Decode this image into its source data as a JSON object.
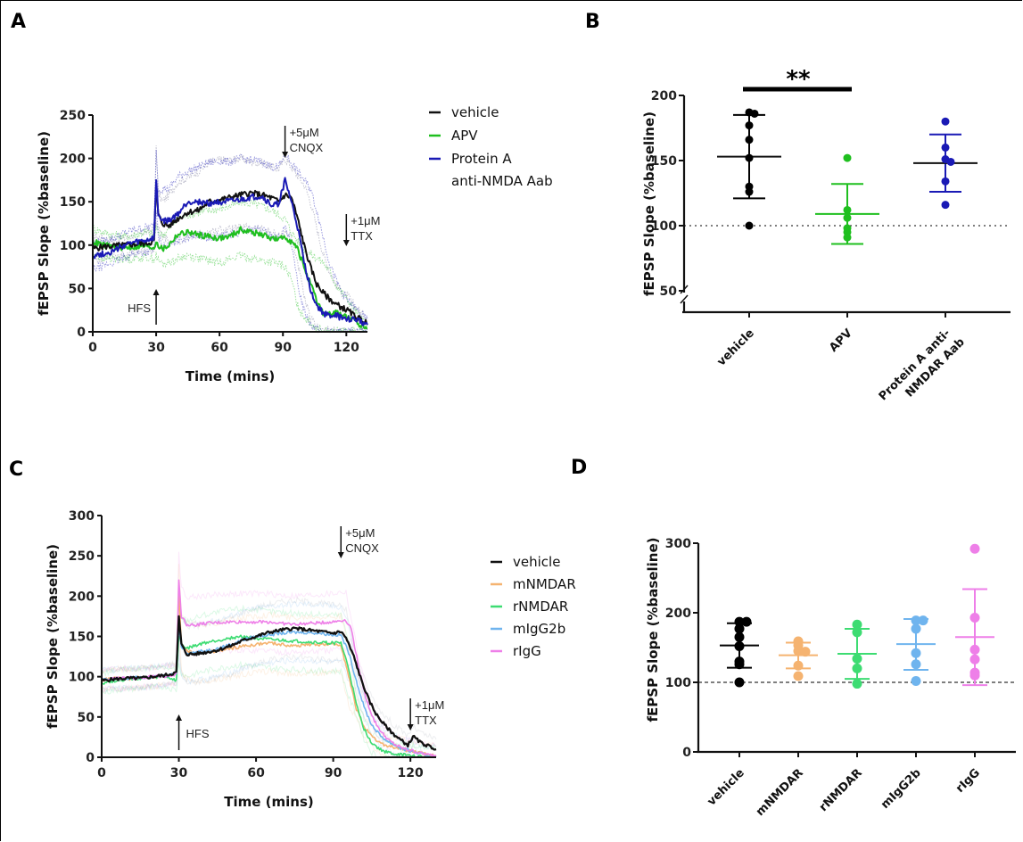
{
  "panels": {
    "A": {
      "letter": "A"
    },
    "B": {
      "letter": "B"
    },
    "C": {
      "letter": "C"
    },
    "D": {
      "letter": "D"
    }
  },
  "chart_data": [
    {
      "id": "A",
      "type": "line",
      "title": "",
      "xlabel": "Time (mins)",
      "ylabel": "fEPSP Slope (%baseline)",
      "xlim": [
        0,
        130
      ],
      "ylim": [
        0,
        250
      ],
      "xticks": [
        0,
        30,
        60,
        90,
        120
      ],
      "yticks": [
        0,
        50,
        100,
        150,
        200,
        250
      ],
      "grid": false,
      "legend": "right",
      "annotations": [
        {
          "text": "HFS",
          "x": 30,
          "direction": "up"
        },
        {
          "text_lines": [
            "+5μM",
            "CNQX"
          ],
          "x": 91,
          "direction": "down"
        },
        {
          "text_lines": [
            "+1μM",
            "TTX"
          ],
          "x": 120,
          "direction": "down"
        }
      ],
      "series": [
        {
          "name": "vehicle",
          "color": "#111111",
          "x": [
            0,
            5,
            10,
            15,
            20,
            25,
            29,
            30,
            31,
            33,
            36,
            40,
            45,
            50,
            55,
            60,
            65,
            70,
            75,
            80,
            85,
            88,
            91,
            94,
            97,
            100,
            103,
            106,
            109,
            112,
            115,
            118,
            121,
            124,
            127,
            130
          ],
          "y": [
            96,
            98,
            99,
            100,
            101,
            102,
            104,
            170,
            135,
            125,
            122,
            130,
            138,
            140,
            150,
            152,
            155,
            158,
            160,
            158,
            154,
            150,
            158,
            155,
            130,
            100,
            75,
            55,
            45,
            38,
            32,
            28,
            24,
            18,
            14,
            10
          ],
          "sd_upper": [
            110,
            108,
            105,
            108,
            112,
            115,
            118,
            215,
            160,
            150,
            158,
            172,
            178,
            185,
            195,
            198,
            198,
            200,
            196,
            195,
            190,
            188,
            200,
            190,
            180,
            170,
            150,
            120,
            90,
            70,
            55,
            45,
            40,
            30,
            22,
            16
          ],
          "sd_lower": [
            82,
            85,
            88,
            90,
            92,
            92,
            94,
            130,
            118,
            110,
            105,
            105,
            108,
            112,
            115,
            118,
            118,
            120,
            120,
            118,
            115,
            110,
            116,
            110,
            80,
            40,
            15,
            5,
            2,
            1,
            0,
            0,
            0,
            0,
            0,
            0
          ]
        },
        {
          "name": "APV",
          "color": "#1fbf1f",
          "x": [
            0,
            5,
            10,
            15,
            20,
            25,
            29,
            30,
            31,
            33,
            36,
            40,
            45,
            50,
            55,
            60,
            65,
            70,
            75,
            80,
            85,
            88,
            91,
            94,
            97,
            100,
            103,
            106,
            109,
            112,
            115,
            118,
            121,
            124,
            127,
            130
          ],
          "y": [
            104,
            100,
            98,
            97,
            98,
            99,
            97,
            105,
            100,
            95,
            100,
            112,
            115,
            112,
            110,
            108,
            110,
            118,
            115,
            112,
            108,
            106,
            110,
            104,
            95,
            75,
            55,
            35,
            22,
            20,
            22,
            20,
            16,
            12,
            8,
            4
          ],
          "sd_upper": [
            120,
            115,
            112,
            110,
            112,
            115,
            112,
            120,
            115,
            112,
            118,
            130,
            135,
            138,
            140,
            142,
            145,
            150,
            148,
            145,
            140,
            135,
            130,
            115,
            105,
            95,
            90,
            85,
            80,
            70,
            55,
            45,
            35,
            25,
            15,
            8
          ],
          "sd_lower": [
            88,
            85,
            84,
            84,
            85,
            86,
            84,
            88,
            82,
            78,
            80,
            84,
            88,
            85,
            82,
            80,
            84,
            88,
            85,
            82,
            80,
            78,
            75,
            60,
            30,
            18,
            10,
            5,
            2,
            0,
            0,
            0,
            0,
            0,
            0,
            0
          ]
        },
        {
          "name": "Protein A anti-NMDA Aab",
          "color": "#1a1ab5",
          "x": [
            0,
            5,
            10,
            15,
            20,
            25,
            29,
            30,
            31,
            33,
            36,
            40,
            45,
            50,
            55,
            60,
            65,
            70,
            75,
            80,
            85,
            88,
            91,
            94,
            97,
            100,
            103,
            106,
            109,
            112,
            115,
            118,
            121,
            124,
            127,
            130
          ],
          "y": [
            88,
            90,
            93,
            100,
            103,
            105,
            108,
            175,
            135,
            128,
            128,
            135,
            150,
            150,
            148,
            150,
            150,
            152,
            155,
            156,
            145,
            148,
            175,
            150,
            120,
            80,
            50,
            30,
            22,
            18,
            20,
            15,
            15,
            14,
            12,
            8
          ],
          "sd_upper": [
            102,
            105,
            108,
            114,
            118,
            120,
            122,
            210,
            165,
            165,
            165,
            178,
            185,
            190,
            195,
            197,
            196,
            200,
            198,
            196,
            190,
            190,
            205,
            195,
            185,
            175,
            165,
            140,
            110,
            80,
            60,
            45,
            35,
            28,
            20,
            14
          ],
          "sd_lower": [
            72,
            76,
            80,
            86,
            90,
            92,
            94,
            140,
            110,
            100,
            98,
            105,
            110,
            112,
            108,
            110,
            112,
            115,
            118,
            118,
            110,
            108,
            120,
            100,
            55,
            25,
            10,
            3,
            0,
            0,
            0,
            0,
            0,
            0,
            0,
            0
          ]
        }
      ]
    },
    {
      "id": "B",
      "type": "scatter",
      "title": "",
      "xlabel": "",
      "ylabel": "fEPSP Slope (%baseline)",
      "ylim": [
        50,
        200
      ],
      "yticks": [
        50,
        100,
        150,
        200
      ],
      "axis_break": true,
      "reference_line": 100,
      "grid": false,
      "significance": {
        "from": "vehicle",
        "to": "APV",
        "label": "**"
      },
      "categories": [
        "vehicle",
        "APV",
        "Protein A anti-NMDAR Aab"
      ],
      "category_label_lines": [
        [
          "vehicle"
        ],
        [
          "APV"
        ],
        [
          "Protein A anti-",
          "NMDAR Aab"
        ]
      ],
      "series": [
        {
          "name": "vehicle",
          "color": "#000000",
          "values": [
            187,
            186,
            177,
            166,
            152,
            130,
            126,
            100
          ],
          "mean": 153,
          "sd_upper": 185,
          "sd_lower": 121
        },
        {
          "name": "APV",
          "color": "#1fbf1f",
          "values": [
            152,
            112,
            106,
            98,
            95,
            91
          ],
          "mean": 109,
          "sd_upper": 132,
          "sd_lower": 86
        },
        {
          "name": "Protein A anti-NMDAR Aab",
          "color": "#1a1ab5",
          "values": [
            180,
            160,
            151,
            149,
            134,
            116
          ],
          "mean": 148,
          "sd_upper": 170,
          "sd_lower": 126
        }
      ]
    },
    {
      "id": "C",
      "type": "line",
      "title": "",
      "xlabel": "Time (mins)",
      "ylabel": "fEPSP Slope (%baseline)",
      "xlim": [
        0,
        130
      ],
      "ylim": [
        0,
        300
      ],
      "xticks": [
        0,
        30,
        60,
        90,
        120
      ],
      "yticks": [
        0,
        50,
        100,
        150,
        200,
        250,
        300
      ],
      "grid": false,
      "legend": "right",
      "annotations": [
        {
          "text": "HFS",
          "x": 30,
          "direction": "up"
        },
        {
          "text_lines": [
            "+5μM",
            "CNQX"
          ],
          "x": 93,
          "direction": "down"
        },
        {
          "text_lines": [
            "+1μM",
            "TTX"
          ],
          "x": 120,
          "direction": "down"
        }
      ],
      "series": [
        {
          "name": "vehicle",
          "color": "#111111",
          "x": [
            0,
            5,
            10,
            15,
            20,
            25,
            29,
            30,
            31,
            33,
            36,
            40,
            45,
            50,
            55,
            60,
            65,
            70,
            75,
            80,
            85,
            90,
            93,
            95,
            98,
            101,
            104,
            107,
            110,
            113,
            116,
            119,
            120,
            121,
            124,
            127,
            130
          ],
          "y": [
            95,
            97,
            98,
            98,
            100,
            102,
            105,
            175,
            140,
            128,
            128,
            130,
            133,
            138,
            145,
            150,
            155,
            158,
            160,
            158,
            156,
            154,
            156,
            148,
            125,
            95,
            70,
            52,
            40,
            30,
            22,
            15,
            20,
            26,
            18,
            14,
            10
          ]
        },
        {
          "name": "mNMDAR",
          "color": "#f5b370",
          "x": [
            0,
            5,
            10,
            15,
            20,
            25,
            29,
            30,
            31,
            33,
            36,
            40,
            45,
            50,
            55,
            60,
            65,
            70,
            75,
            80,
            85,
            90,
            93,
            96,
            99,
            102,
            105,
            108,
            111,
            114,
            117,
            120,
            124,
            127,
            130
          ],
          "y": [
            96,
            98,
            97,
            99,
            100,
            101,
            104,
            205,
            140,
            132,
            130,
            130,
            132,
            135,
            138,
            140,
            142,
            140,
            138,
            140,
            140,
            140,
            140,
            100,
            60,
            38,
            25,
            18,
            14,
            12,
            10,
            8,
            5,
            3,
            2
          ]
        },
        {
          "name": "rNMDAR",
          "color": "#3ddc72",
          "x": [
            0,
            5,
            10,
            15,
            20,
            25,
            29,
            30,
            31,
            33,
            36,
            40,
            45,
            50,
            55,
            60,
            65,
            70,
            75,
            80,
            85,
            90,
            93,
            96,
            99,
            102,
            105,
            108,
            111,
            114,
            117,
            120,
            124,
            127,
            130
          ],
          "y": [
            92,
            95,
            97,
            98,
            99,
            100,
            95,
            150,
            140,
            135,
            138,
            142,
            145,
            148,
            150,
            148,
            146,
            145,
            144,
            143,
            142,
            142,
            142,
            110,
            65,
            35,
            18,
            10,
            6,
            4,
            3,
            2,
            1,
            0,
            0
          ]
        },
        {
          "name": "mIgG2b",
          "color": "#6fb4ee",
          "x": [
            0,
            5,
            10,
            15,
            20,
            25,
            29,
            30,
            31,
            33,
            36,
            40,
            45,
            50,
            55,
            60,
            65,
            70,
            75,
            80,
            85,
            90,
            93,
            96,
            99,
            102,
            105,
            108,
            111,
            114,
            117,
            120,
            124,
            127,
            130
          ],
          "y": [
            96,
            97,
            98,
            99,
            100,
            101,
            104,
            160,
            138,
            130,
            130,
            132,
            135,
            140,
            146,
            150,
            152,
            154,
            155,
            155,
            154,
            152,
            152,
            130,
            95,
            62,
            40,
            28,
            20,
            15,
            10,
            8,
            4,
            2,
            1
          ]
        },
        {
          "name": "rIgG",
          "color": "#ee7fe8",
          "x": [
            0,
            5,
            10,
            15,
            20,
            25,
            29,
            30,
            31,
            33,
            36,
            40,
            45,
            50,
            55,
            60,
            65,
            70,
            75,
            80,
            85,
            90,
            93,
            95,
            97,
            100,
            103,
            106,
            109,
            112,
            115,
            118,
            121,
            124,
            127,
            130
          ],
          "y": [
            96,
            98,
            98,
            99,
            100,
            101,
            103,
            220,
            175,
            165,
            164,
            166,
            167,
            168,
            168,
            168,
            168,
            166,
            165,
            166,
            167,
            168,
            170,
            170,
            160,
            110,
            70,
            45,
            30,
            20,
            14,
            10,
            8,
            5,
            3,
            2
          ]
        }
      ]
    },
    {
      "id": "D",
      "type": "scatter",
      "title": "",
      "xlabel": "",
      "ylabel": "fEPSP Slope (%baseline)",
      "ylim": [
        0,
        300
      ],
      "yticks": [
        0,
        100,
        200,
        300
      ],
      "reference_line": 100,
      "grid": false,
      "categories": [
        "vehicle",
        "mNMDAR",
        "rNMDAR",
        "mIgG2b",
        "rIgG"
      ],
      "series": [
        {
          "name": "vehicle",
          "color": "#000000",
          "values": [
            187,
            187,
            177,
            165,
            152,
            130,
            126,
            100
          ],
          "mean": 153,
          "sd_upper": 185,
          "sd_lower": 121
        },
        {
          "name": "mNMDAR",
          "color": "#f5b370",
          "values": [
            159,
            153,
            145,
            144,
            124,
            109
          ],
          "mean": 139,
          "sd_upper": 157,
          "sd_lower": 120
        },
        {
          "name": "rNMDAR",
          "color": "#3ddc72",
          "values": [
            183,
            172,
            134,
            120,
            98
          ],
          "mean": 141,
          "sd_upper": 177,
          "sd_lower": 105
        },
        {
          "name": "mIgG2b",
          "color": "#6fb4ee",
          "values": [
            189,
            189,
            177,
            142,
            126,
            102
          ],
          "mean": 155,
          "sd_upper": 191,
          "sd_lower": 118
        },
        {
          "name": "rIgG",
          "color": "#ee7fe8",
          "values": [
            292,
            193,
            147,
            133,
            114,
            110
          ],
          "mean": 165,
          "sd_upper": 234,
          "sd_lower": 96
        }
      ]
    }
  ]
}
